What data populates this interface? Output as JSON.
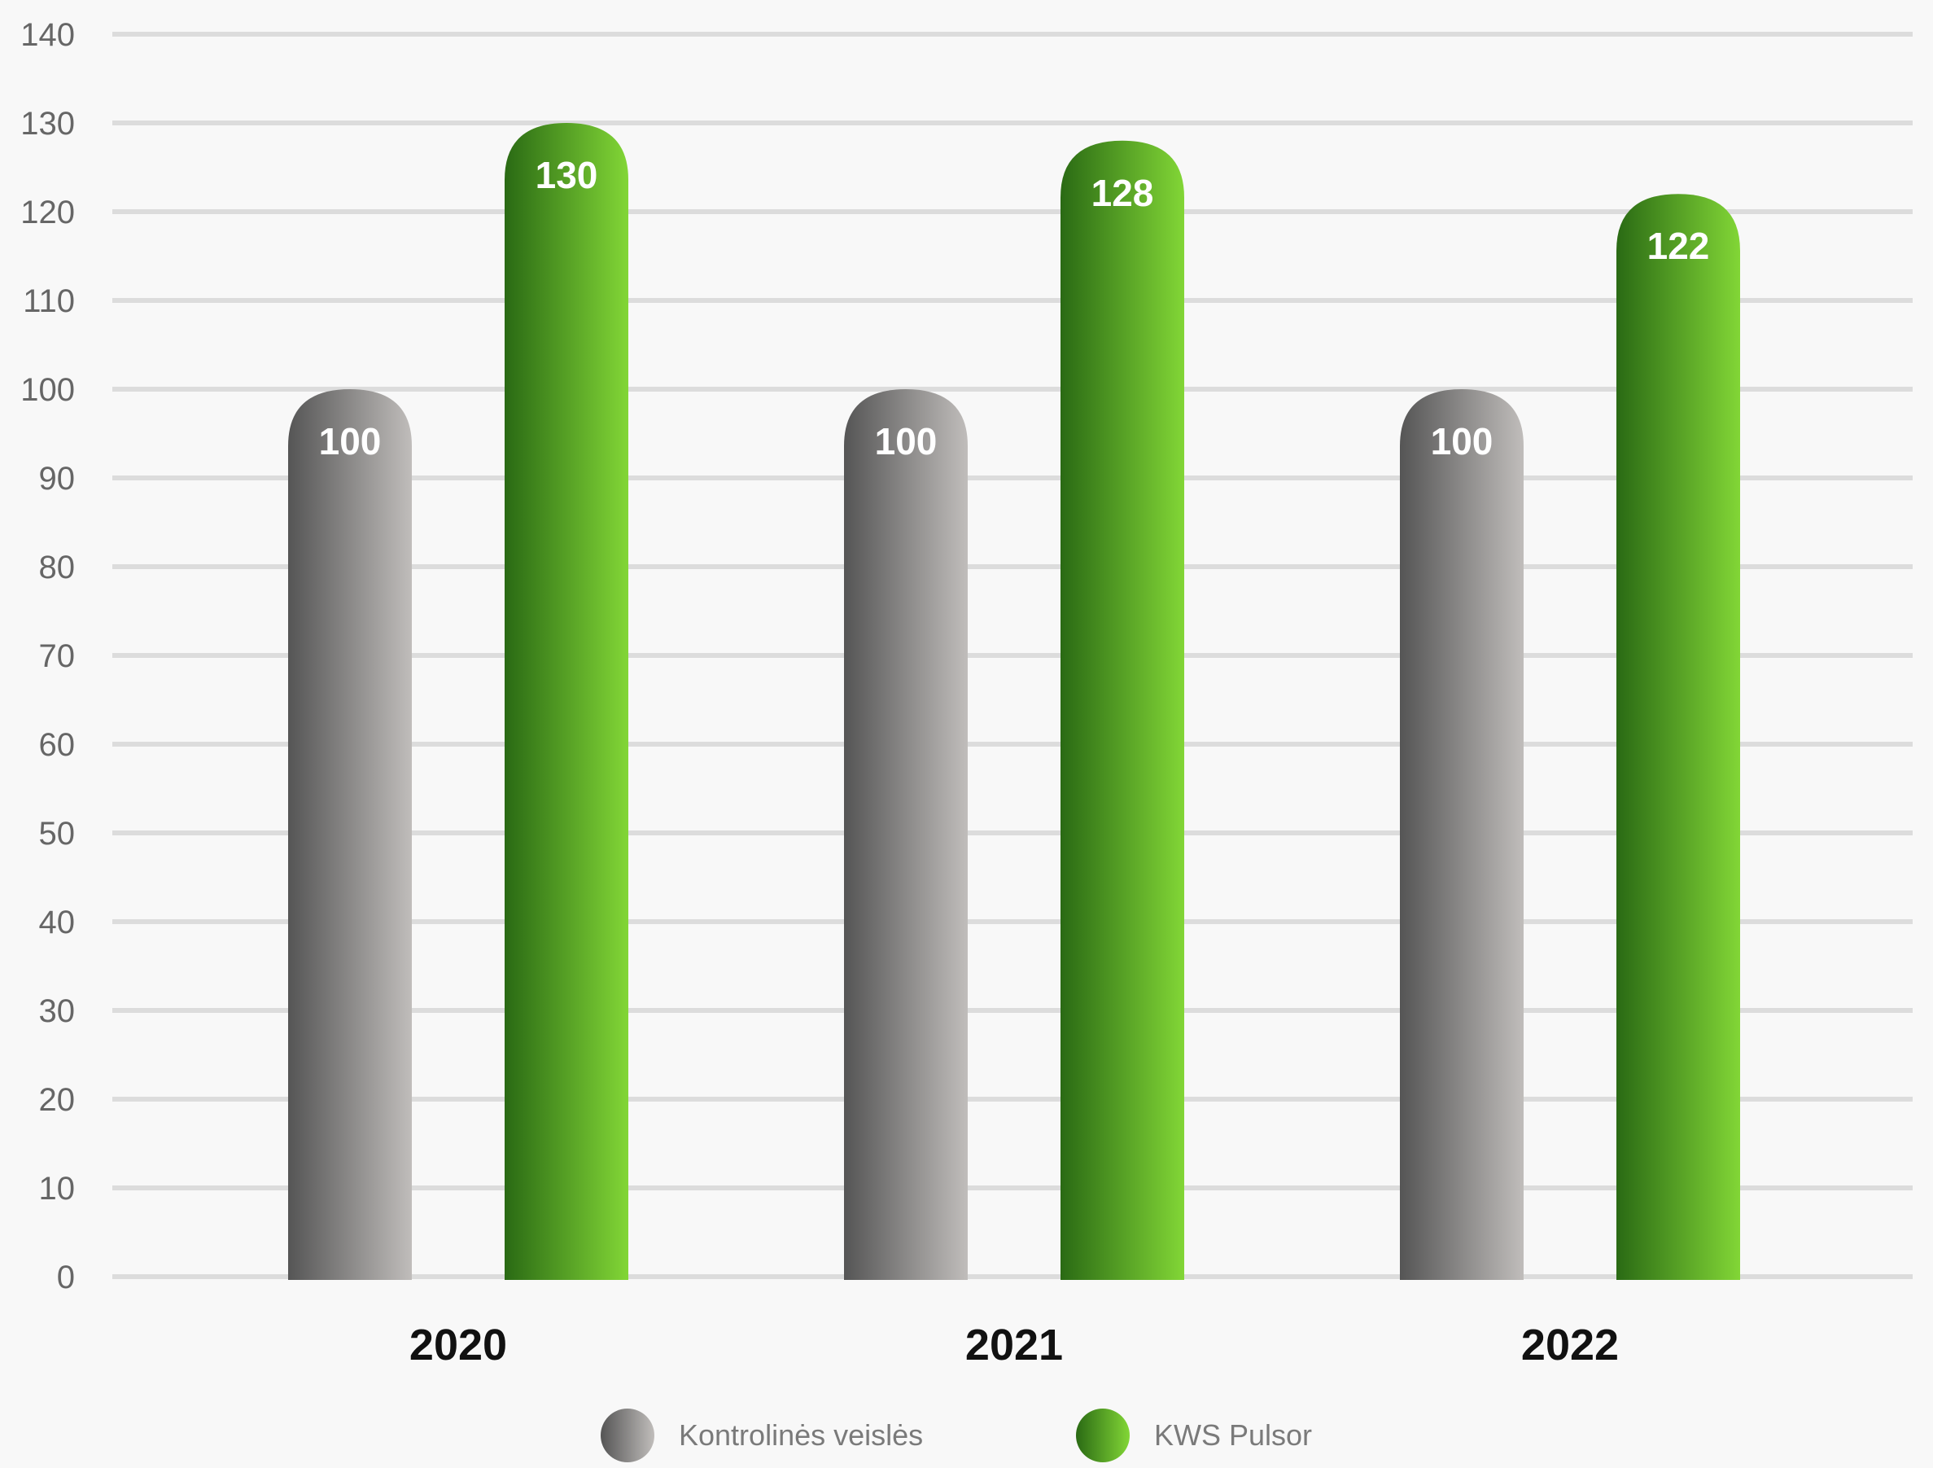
{
  "chart_data": {
    "type": "bar",
    "categories": [
      "2020",
      "2021",
      "2022"
    ],
    "series": [
      {
        "name": "Kontrolinės veislės",
        "values": [
          100,
          100,
          100
        ],
        "color_dark": "#555555",
        "color_light": "#c0bdbb"
      },
      {
        "name": "KWS Pulsor",
        "values": [
          130,
          128,
          122
        ],
        "color_dark": "#2a6a14",
        "color_light": "#82d636"
      }
    ],
    "title": "",
    "xlabel": "",
    "ylabel": "",
    "ylim": [
      0,
      140
    ],
    "yticks": [
      0,
      10,
      20,
      30,
      40,
      50,
      60,
      70,
      80,
      90,
      100,
      110,
      120,
      130,
      140
    ],
    "grid": true,
    "grid_color": "#dcdcdc",
    "legend": "bottom-center",
    "bar_label_color": "#ffffff",
    "tick_color": "#666666",
    "category_color": "#111111"
  },
  "legend": {
    "items": [
      {
        "label": "Kontrolinės veislės"
      },
      {
        "label": "KWS Pulsor"
      }
    ]
  }
}
